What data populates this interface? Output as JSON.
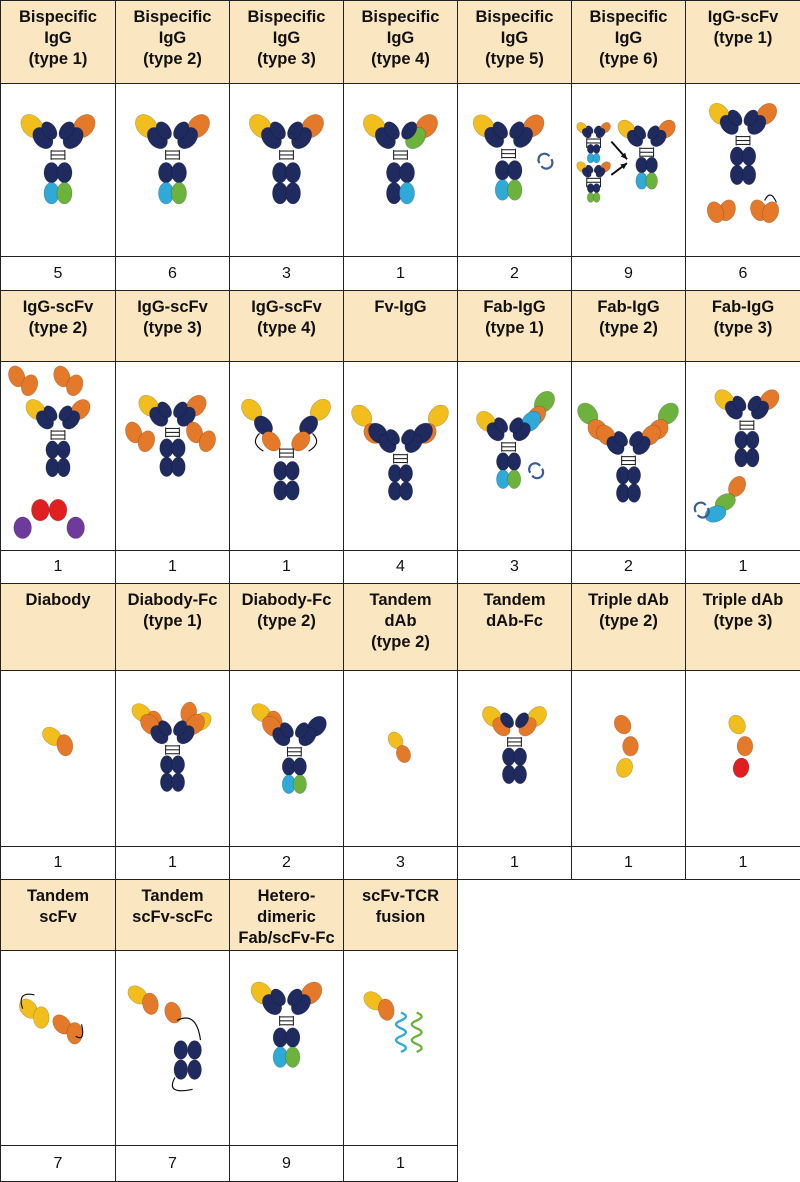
{
  "colors": {
    "header_bg": "#fbe6c2",
    "border": "#222222",
    "heavy_chain": "#1f2a5e",
    "vh_yellow": "#f2be1d",
    "vl_orange": "#e5792a",
    "domain_green": "#6cb23d",
    "domain_blue": "#2fa9d8",
    "domain_red": "#e02020",
    "domain_purple": "#6e3b9c",
    "arrow_blue": "#3b5d8f"
  },
  "rows": [
    {
      "formats": [
        {
          "title": "Bispecific\nIgG\n(type 1)",
          "count": "5",
          "icon": "bispecific-igg-type1"
        },
        {
          "title": "Bispecific\nIgG\n(type 2)",
          "count": "6",
          "icon": "bispecific-igg-type2"
        },
        {
          "title": "Bispecific\nIgG\n(type 3)",
          "count": "3",
          "icon": "bispecific-igg-type3"
        },
        {
          "title": "Bispecific\nIgG\n(type 4)",
          "count": "1",
          "icon": "bispecific-igg-type4"
        },
        {
          "title": "Bispecific\nIgG\n(type 5)",
          "count": "2",
          "icon": "bispecific-igg-type5"
        },
        {
          "title": "Bispecific\nIgG\n(type 6)",
          "count": "9",
          "icon": "bispecific-igg-type6"
        },
        {
          "title": "IgG-scFv\n(type 1)",
          "count": "6",
          "icon": "igg-scfv-type1"
        }
      ]
    },
    {
      "formats": [
        {
          "title": "IgG-scFv\n(type 2)",
          "count": "1",
          "icon": "igg-scfv-type2"
        },
        {
          "title": "IgG-scFv\n(type 3)",
          "count": "1",
          "icon": "igg-scfv-type3"
        },
        {
          "title": "IgG-scFv\n(type 4)",
          "count": "1",
          "icon": "igg-scfv-type4"
        },
        {
          "title": "Fv-IgG",
          "count": "4",
          "icon": "fv-igg"
        },
        {
          "title": "Fab-IgG\n(type 1)",
          "count": "3",
          "icon": "fab-igg-type1"
        },
        {
          "title": "Fab-IgG\n(type 2)",
          "count": "2",
          "icon": "fab-igg-type2"
        },
        {
          "title": "Fab-IgG\n(type 3)",
          "count": "1",
          "icon": "fab-igg-type3"
        }
      ]
    },
    {
      "formats": [
        {
          "title": "Diabody",
          "count": "1",
          "icon": "diabody"
        },
        {
          "title": "Diabody-Fc\n(type 1)",
          "count": "1",
          "icon": "diabody-fc-type1"
        },
        {
          "title": "Diabody-Fc\n(type 2)",
          "count": "2",
          "icon": "diabody-fc-type2"
        },
        {
          "title": "Tandem\ndAb\n(type 2)",
          "count": "3",
          "icon": "tandem-dab-type2"
        },
        {
          "title": "Tandem\ndAb-Fc",
          "count": "1",
          "icon": "tandem-dab-fc"
        },
        {
          "title": "Triple dAb\n(type 2)",
          "count": "1",
          "icon": "triple-dab-type2"
        },
        {
          "title": "Triple dAb\n(type 3)",
          "count": "1",
          "icon": "triple-dab-type3"
        }
      ]
    },
    {
      "formats": [
        {
          "title": "Tandem\nscFv",
          "count": "7",
          "icon": "tandem-scfv"
        },
        {
          "title": "Tandem\nscFv-scFc",
          "count": "7",
          "icon": "tandem-scfv-scfc"
        },
        {
          "title": "Hetero-\ndimeric\nFab/scFv-Fc",
          "count": "9",
          "icon": "heterodimeric-fab-scfv-fc"
        },
        {
          "title": "scFv-TCR\nfusion",
          "count": "1",
          "icon": "scfv-tcr-fusion"
        }
      ]
    }
  ]
}
